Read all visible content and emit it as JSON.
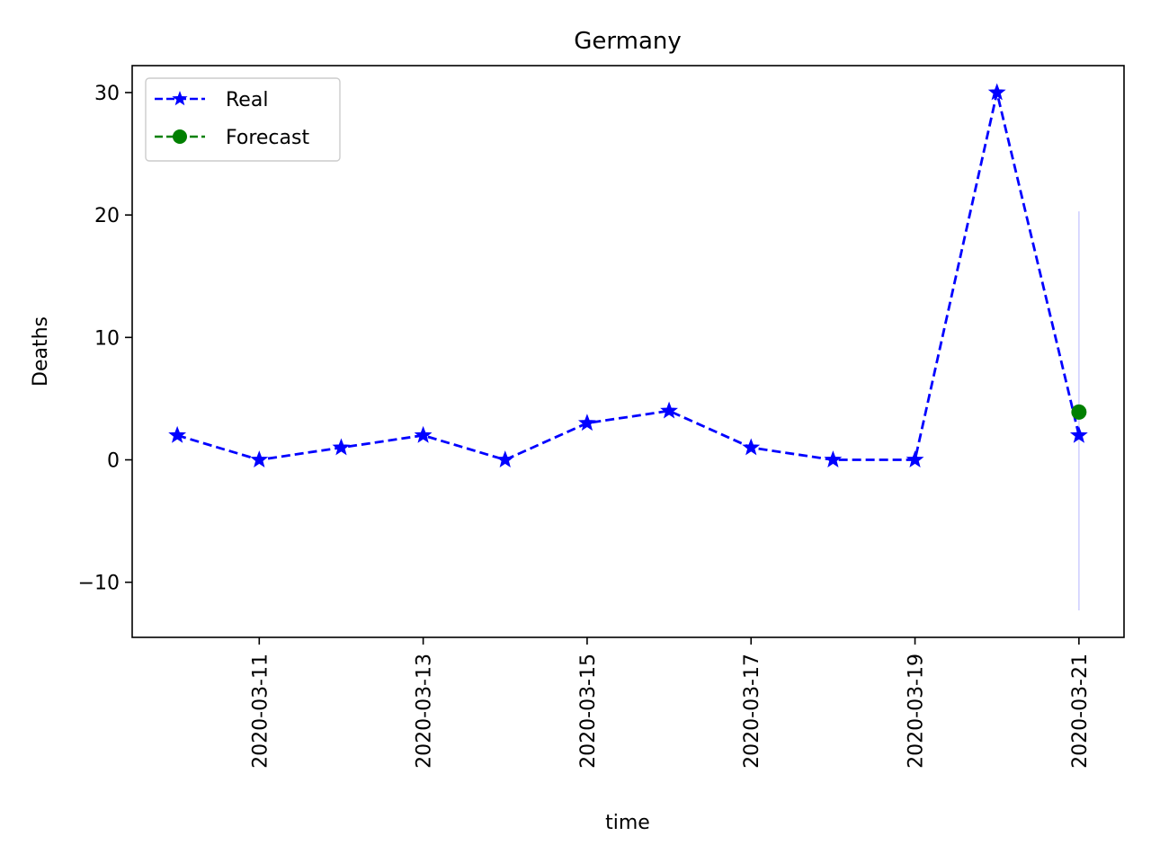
{
  "chart_data": {
    "type": "line",
    "title": "Germany",
    "xlabel": "time",
    "ylabel": "Deaths",
    "x_ticks": [
      "2020-03-11",
      "2020-03-13",
      "2020-03-15",
      "2020-03-17",
      "2020-03-19",
      "2020-03-21"
    ],
    "y_ticks": [
      -10,
      0,
      10,
      20,
      30
    ],
    "y_tick_labels": [
      "−10",
      "0",
      "10",
      "20",
      "30"
    ],
    "xlim": [
      "2020-03-09",
      "2020-03-21"
    ],
    "ylim": [
      -14.5,
      32.2
    ],
    "grid": false,
    "legend_position": "top-left",
    "series": [
      {
        "name": "Real",
        "color": "#0000ff",
        "line_style": "dashed",
        "marker": "star",
        "x": [
          "2020-03-10",
          "2020-03-11",
          "2020-03-12",
          "2020-03-13",
          "2020-03-14",
          "2020-03-15",
          "2020-03-16",
          "2020-03-17",
          "2020-03-18",
          "2020-03-19",
          "2020-03-20",
          "2020-03-21"
        ],
        "y": [
          2,
          0,
          1,
          2,
          0,
          3,
          4,
          1,
          0,
          0,
          30,
          2
        ]
      },
      {
        "name": "Forecast",
        "color": "#008000",
        "line_style": "dashed",
        "marker": "circle",
        "x": [
          "2020-03-21"
        ],
        "y": [
          3.9
        ]
      }
    ],
    "forecast_interval": {
      "x": "2020-03-21",
      "low": -12.3,
      "high": 20.3,
      "color": "#d0d0ff"
    }
  }
}
